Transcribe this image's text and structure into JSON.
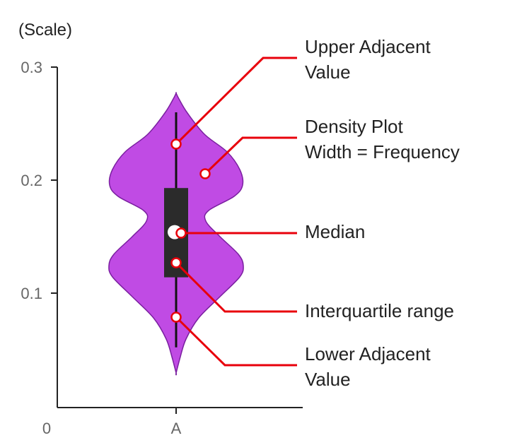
{
  "chart_data": {
    "type": "violin",
    "scale_label": "(Scale)",
    "origin_label": "0",
    "y_ticks": [
      {
        "value": 0.1,
        "label": "0.1"
      },
      {
        "value": 0.2,
        "label": "0.2"
      },
      {
        "value": 0.3,
        "label": "0.3"
      }
    ],
    "categories": [
      "A"
    ],
    "violin": {
      "category": "A",
      "y_min": 0.03,
      "y_max": 0.276,
      "upper_adjacent": 0.26,
      "lower_adjacent": 0.052,
      "q3": 0.193,
      "q1": 0.114,
      "median": 0.154,
      "fill_color": "#c04be4",
      "stroke_color": "#7a1fa0",
      "box_color": "#2b2b2b",
      "median_color": "#ffffff"
    },
    "annotation_color": "#e8000b",
    "annotations": [
      {
        "key": "upper",
        "lines": [
          "Upper Adjacent",
          "Value"
        ]
      },
      {
        "key": "density",
        "lines": [
          "Density Plot",
          "Width = Frequency"
        ]
      },
      {
        "key": "median",
        "lines": [
          "Median"
        ]
      },
      {
        "key": "iqr",
        "lines": [
          "Interquartile range"
        ]
      },
      {
        "key": "lower",
        "lines": [
          "Lower Adjacent",
          "Value"
        ]
      }
    ]
  }
}
